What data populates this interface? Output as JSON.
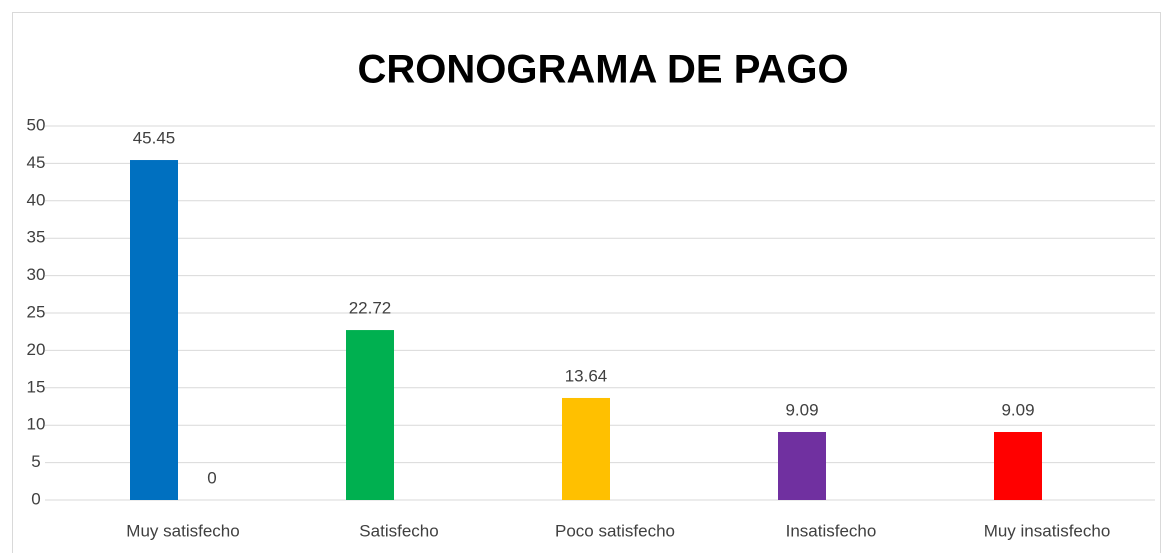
{
  "chart_data": {
    "type": "bar",
    "title": "CRONOGRAMA DE PAGO",
    "categories": [
      "Muy satisfecho",
      "Satisfecho",
      "Poco satisfecho",
      "Insatisfecho",
      "Muy insatisfecho"
    ],
    "series": [
      {
        "colors": [
          "#0070c0",
          "#00b050",
          "#ffc000",
          "#7030a0",
          "#ff0000"
        ],
        "values": [
          45.45,
          22.72,
          13.64,
          9.09,
          9.09
        ]
      },
      {
        "color": "#a5a5a5",
        "values": [
          0,
          null,
          null,
          null,
          null
        ]
      }
    ],
    "ylim": [
      0,
      50
    ],
    "yticks": [
      0,
      5,
      10,
      15,
      20,
      25,
      30,
      35,
      40,
      45,
      50
    ],
    "grid": true,
    "data_labels": true
  }
}
